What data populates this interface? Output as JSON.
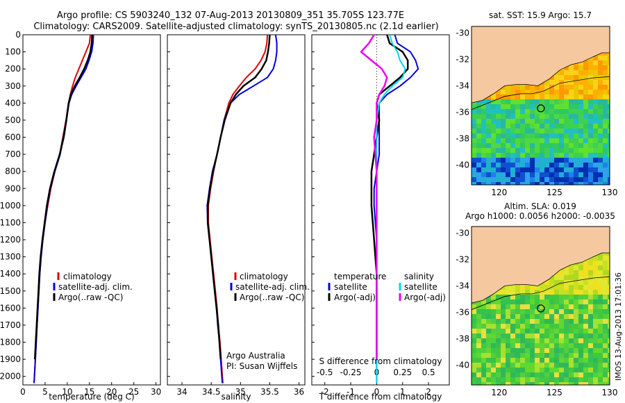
{
  "header": {
    "line1": "Argo profile: CS 5903240_132 07-Aug-2013 20130809_351 35.705S 123.77E",
    "line2": "Climatology: CARS2009. Satellite-adjusted climatology: synTS_20130805.nc (2.1d earlier)"
  },
  "colors": {
    "climatology": "#e00000",
    "satellite": "#0000dd",
    "argo": "#000000",
    "sat_salinity": "#00d8e8",
    "argo_salinity": "#ee00ee",
    "land": "#f5c8a0"
  },
  "legend_left": {
    "climatology": "climatology",
    "satellite": "satellite-adj. clim.",
    "argo": "Argo(..raw -QC)"
  },
  "legend_mid": {
    "climatology": "climatology",
    "satellite": "satellite-adj. clim.",
    "argo": "Argo(..raw -QC)"
  },
  "legend_diff": {
    "temp_head": "temperature",
    "temp_sat": "satellite",
    "temp_argo": "Argo(-adj)",
    "sal_head": "salinity",
    "sal_sat": "satellite",
    "sal_argo": "Argo(-adj)"
  },
  "annotations": {
    "owner1": "Argo Australia",
    "owner2": "PI: Susan Wijffels",
    "s_diff_title": "S difference from climatology",
    "map1_title": "sat. SST: 15.9  Argo: 15.7",
    "map2_title1": "Altim. SLA: 0.019",
    "map2_title2": "Argo h1000: 0.0056 h2000: -0.0035",
    "footer": "IMOS 13-Aug-2013 17:01:36"
  },
  "chart_data": [
    {
      "type": "line",
      "name": "temperature-profile",
      "xlabel": "temperature (deg C)",
      "xlim": [
        0,
        31
      ],
      "ylim": [
        2050,
        0
      ],
      "xticks": [
        0,
        5,
        10,
        15,
        20,
        25,
        30
      ],
      "yticks": [
        0,
        100,
        200,
        300,
        400,
        500,
        600,
        700,
        800,
        900,
        1000,
        1100,
        1200,
        1300,
        1400,
        1500,
        1600,
        1700,
        1800,
        1900,
        2000
      ],
      "series": [
        {
          "name": "climatology",
          "points": [
            [
              15.2,
              0
            ],
            [
              15.0,
              50
            ],
            [
              14.2,
              100
            ],
            [
              13.4,
              150
            ],
            [
              12.6,
              200
            ],
            [
              11.8,
              250
            ],
            [
              11.2,
              300
            ],
            [
              10.7,
              350
            ],
            [
              10.3,
              400
            ],
            [
              9.7,
              500
            ],
            [
              9.0,
              600
            ],
            [
              8.3,
              700
            ],
            [
              7.2,
              800
            ],
            [
              6.3,
              900
            ],
            [
              5.6,
              1000
            ],
            [
              5.0,
              1100
            ],
            [
              4.5,
              1200
            ],
            [
              4.1,
              1300
            ],
            [
              3.8,
              1400
            ],
            [
              3.6,
              1500
            ],
            [
              3.4,
              1600
            ],
            [
              3.2,
              1700
            ],
            [
              3.0,
              1800
            ],
            [
              2.8,
              1900
            ],
            [
              2.6,
              2000
            ],
            [
              2.5,
              2040
            ]
          ]
        },
        {
          "name": "satellite-adj. clim.",
          "points": [
            [
              15.9,
              0
            ],
            [
              15.8,
              50
            ],
            [
              15.5,
              100
            ],
            [
              14.9,
              150
            ],
            [
              14.2,
              200
            ],
            [
              13.1,
              250
            ],
            [
              12.0,
              300
            ],
            [
              11.0,
              350
            ],
            [
              10.4,
              400
            ],
            [
              9.8,
              500
            ],
            [
              9.1,
              600
            ],
            [
              8.4,
              700
            ],
            [
              7.2,
              800
            ],
            [
              6.2,
              900
            ],
            [
              5.5,
              1000
            ],
            [
              5.0,
              1100
            ],
            [
              4.5,
              1200
            ],
            [
              4.1,
              1300
            ],
            [
              3.8,
              1400
            ],
            [
              3.6,
              1500
            ],
            [
              3.4,
              1600
            ],
            [
              3.2,
              1700
            ],
            [
              3.0,
              1800
            ],
            [
              2.8,
              1900
            ],
            [
              2.6,
              2000
            ],
            [
              2.5,
              2040
            ]
          ]
        },
        {
          "name": "Argo(..raw -QC)",
          "points": [
            [
              15.6,
              0
            ],
            [
              15.5,
              50
            ],
            [
              15.2,
              100
            ],
            [
              14.6,
              150
            ],
            [
              13.8,
              200
            ],
            [
              12.8,
              250
            ],
            [
              11.7,
              300
            ],
            [
              10.8,
              350
            ],
            [
              10.3,
              400
            ],
            [
              9.8,
              500
            ],
            [
              9.2,
              600
            ],
            [
              8.3,
              700
            ],
            [
              7.1,
              800
            ],
            [
              6.1,
              900
            ],
            [
              5.4,
              1000
            ],
            [
              4.9,
              1100
            ],
            [
              4.4,
              1200
            ],
            [
              4.0,
              1300
            ],
            [
              3.7,
              1400
            ],
            [
              3.5,
              1500
            ],
            [
              3.3,
              1600
            ],
            [
              3.1,
              1700
            ],
            [
              2.9,
              1800
            ],
            [
              2.7,
              1900
            ]
          ]
        }
      ]
    },
    {
      "type": "line",
      "name": "salinity-profile",
      "xlabel": "salinity",
      "xlim": [
        33.75,
        36.1
      ],
      "ylim": [
        2050,
        0
      ],
      "xticks": [
        34,
        34.5,
        35,
        35.5,
        36
      ],
      "series": [
        {
          "name": "climatology",
          "points": [
            [
              35.46,
              0
            ],
            [
              35.45,
              50
            ],
            [
              35.42,
              100
            ],
            [
              35.35,
              150
            ],
            [
              35.25,
              200
            ],
            [
              35.1,
              250
            ],
            [
              34.98,
              300
            ],
            [
              34.87,
              350
            ],
            [
              34.8,
              400
            ],
            [
              34.72,
              500
            ],
            [
              34.66,
              600
            ],
            [
              34.6,
              700
            ],
            [
              34.54,
              800
            ],
            [
              34.49,
              900
            ],
            [
              34.45,
              1000
            ],
            [
              34.45,
              1100
            ],
            [
              34.48,
              1200
            ],
            [
              34.51,
              1300
            ],
            [
              34.54,
              1400
            ],
            [
              34.57,
              1500
            ],
            [
              34.6,
              1600
            ],
            [
              34.62,
              1700
            ],
            [
              34.65,
              1800
            ],
            [
              34.67,
              1900
            ],
            [
              34.69,
              2000
            ],
            [
              34.7,
              2040
            ]
          ]
        },
        {
          "name": "satellite-adj. clim.",
          "points": [
            [
              35.6,
              0
            ],
            [
              35.62,
              50
            ],
            [
              35.62,
              100
            ],
            [
              35.6,
              150
            ],
            [
              35.56,
              200
            ],
            [
              35.46,
              250
            ],
            [
              35.22,
              300
            ],
            [
              34.98,
              350
            ],
            [
              34.83,
              400
            ],
            [
              34.72,
              500
            ],
            [
              34.66,
              600
            ],
            [
              34.6,
              700
            ],
            [
              34.52,
              800
            ],
            [
              34.47,
              900
            ],
            [
              34.43,
              1000
            ],
            [
              34.44,
              1100
            ],
            [
              34.47,
              1200
            ],
            [
              34.5,
              1300
            ],
            [
              34.53,
              1400
            ],
            [
              34.56,
              1500
            ],
            [
              34.59,
              1600
            ],
            [
              34.61,
              1700
            ],
            [
              34.64,
              1800
            ],
            [
              34.66,
              1900
            ],
            [
              34.68,
              2000
            ],
            [
              34.69,
              2040
            ]
          ]
        },
        {
          "name": "Argo(..raw -QC)",
          "points": [
            [
              35.5,
              0
            ],
            [
              35.49,
              50
            ],
            [
              35.47,
              100
            ],
            [
              35.44,
              150
            ],
            [
              35.36,
              200
            ],
            [
              35.25,
              250
            ],
            [
              35.05,
              300
            ],
            [
              34.92,
              350
            ],
            [
              34.83,
              400
            ],
            [
              34.73,
              500
            ],
            [
              34.66,
              600
            ],
            [
              34.6,
              700
            ],
            [
              34.53,
              800
            ],
            [
              34.48,
              900
            ],
            [
              34.44,
              1000
            ],
            [
              34.44,
              1100
            ],
            [
              34.47,
              1200
            ],
            [
              34.5,
              1300
            ],
            [
              34.53,
              1400
            ],
            [
              34.56,
              1500
            ],
            [
              34.59,
              1600
            ],
            [
              34.62,
              1700
            ],
            [
              34.64,
              1800
            ],
            [
              34.66,
              1900
            ]
          ]
        }
      ]
    },
    {
      "type": "line",
      "name": "difference-profile",
      "xlabel": "T difference from climatology",
      "x2label": "S difference from climatology",
      "xlim": [
        -2.5,
        2.8
      ],
      "ylim": [
        2050,
        0
      ],
      "xticks": [
        -2,
        -1,
        0,
        1,
        2
      ],
      "x2ticks": [
        "-0.5",
        "-0.25",
        "0",
        "0.25",
        "0.5"
      ],
      "series": [
        {
          "name": "temperature satellite",
          "points": [
            [
              0.7,
              0
            ],
            [
              0.8,
              50
            ],
            [
              1.3,
              100
            ],
            [
              1.5,
              150
            ],
            [
              1.6,
              200
            ],
            [
              1.3,
              250
            ],
            [
              0.9,
              300
            ],
            [
              0.4,
              350
            ],
            [
              0.1,
              400
            ],
            [
              0.1,
              500
            ],
            [
              0.1,
              600
            ],
            [
              0.1,
              700
            ],
            [
              0.0,
              800
            ],
            [
              -0.1,
              900
            ],
            [
              -0.1,
              1000
            ],
            [
              -0.05,
              1100
            ],
            [
              0.0,
              1200
            ],
            [
              0.0,
              1400
            ],
            [
              0.0,
              1600
            ],
            [
              0.0,
              1800
            ],
            [
              0.0,
              2000
            ],
            [
              0.0,
              2040
            ]
          ]
        },
        {
          "name": "temperature Argo(-adj)",
          "points": [
            [
              0.4,
              0
            ],
            [
              0.5,
              50
            ],
            [
              1.0,
              100
            ],
            [
              1.2,
              150
            ],
            [
              1.2,
              200
            ],
            [
              0.9,
              250
            ],
            [
              0.5,
              300
            ],
            [
              0.1,
              350
            ],
            [
              0.0,
              400
            ],
            [
              0.1,
              500
            ],
            [
              0.0,
              600
            ],
            [
              -0.1,
              700
            ],
            [
              -0.2,
              800
            ],
            [
              -0.2,
              900
            ],
            [
              -0.2,
              1000
            ],
            [
              -0.15,
              1100
            ],
            [
              -0.1,
              1200
            ],
            [
              -0.05,
              1300
            ],
            [
              0.0,
              1400
            ],
            [
              0.0,
              1600
            ],
            [
              0.0,
              1800
            ],
            [
              0.0,
              1900
            ]
          ]
        },
        {
          "name": "salinity satellite",
          "points": [
            [
              0.5,
              0
            ],
            [
              0.6,
              50
            ],
            [
              0.8,
              100
            ],
            [
              0.9,
              150
            ],
            [
              1.1,
              200
            ],
            [
              1.0,
              250
            ],
            [
              0.6,
              300
            ],
            [
              0.3,
              350
            ],
            [
              0.1,
              400
            ],
            [
              0.0,
              500
            ],
            [
              0.0,
              700
            ],
            [
              0.0,
              900
            ],
            [
              0.0,
              1100
            ],
            [
              0.0,
              1400
            ],
            [
              0.0,
              1700
            ],
            [
              0.0,
              2000
            ],
            [
              0.0,
              2040
            ]
          ]
        },
        {
          "name": "salinity Argo(-adj)",
          "points": [
            [
              -0.1,
              0
            ],
            [
              -0.3,
              50
            ],
            [
              -0.6,
              100
            ],
            [
              -0.2,
              150
            ],
            [
              0.2,
              200
            ],
            [
              0.4,
              250
            ],
            [
              0.3,
              300
            ],
            [
              0.1,
              350
            ],
            [
              0.0,
              400
            ],
            [
              0.0,
              500
            ],
            [
              -0.1,
              600
            ],
            [
              -0.05,
              700
            ],
            [
              0.0,
              800
            ],
            [
              0.0,
              1000
            ],
            [
              0.0,
              1200
            ],
            [
              0.0,
              1500
            ],
            [
              0.0,
              1900
            ]
          ]
        }
      ]
    },
    {
      "type": "heatmap",
      "name": "sst-map",
      "xlim": [
        117.5,
        130
      ],
      "ylim": [
        -41.5,
        -29.5
      ],
      "xticks": [
        120,
        125,
        130
      ],
      "yticks": [
        -30,
        -32,
        -34,
        -36,
        -38,
        -40
      ],
      "float_position": [
        123.77,
        -35.705
      ]
    },
    {
      "type": "heatmap",
      "name": "sla-map",
      "xlim": [
        117.5,
        130
      ],
      "ylim": [
        -41.5,
        -29.5
      ],
      "xticks": [
        120,
        125,
        130
      ],
      "yticks": [
        -30,
        -32,
        -34,
        -36,
        -38,
        -40
      ],
      "float_position": [
        123.77,
        -35.705
      ]
    }
  ]
}
